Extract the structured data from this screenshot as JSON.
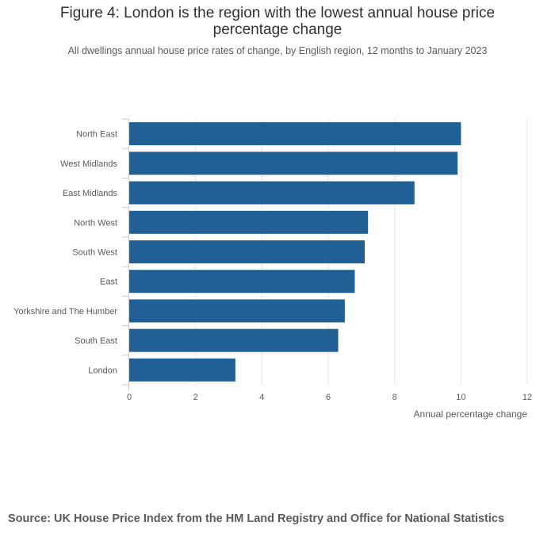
{
  "title": "Figure 4: London is the region with the lowest annual house price percentage change",
  "subtitle": "All dwellings annual house price rates of change, by English region, 12 months to January 2023",
  "source": "Source: UK House Price Index from the HM Land Registry and Office for National Statistics",
  "chart_data": {
    "type": "bar",
    "orientation": "horizontal",
    "categories": [
      "North East",
      "West Midlands",
      "East Midlands",
      "North West",
      "South West",
      "East",
      "Yorkshire and The Humber",
      "South East",
      "London"
    ],
    "values": [
      10.0,
      9.9,
      8.6,
      7.2,
      7.1,
      6.8,
      6.5,
      6.3,
      3.2
    ],
    "xlabel": "Annual percentage change",
    "ylabel": "",
    "xlim": [
      0,
      12
    ],
    "xticks": [
      0,
      2,
      4,
      6,
      8,
      10,
      12
    ],
    "grid": "vertical",
    "bar_color": "#206095",
    "grid_color": "#e6e6e6",
    "axis_color": "#cccccc"
  }
}
